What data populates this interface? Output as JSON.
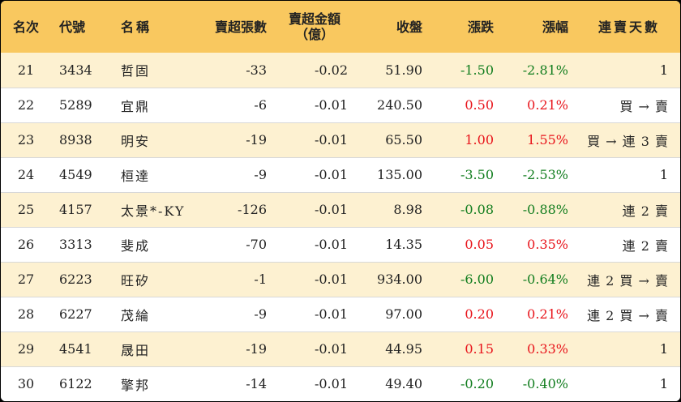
{
  "columns": {
    "rank": "名次",
    "code": "代號",
    "name": "名稱",
    "sell_lots": "賣超張數",
    "sell_amount_line1": "賣超金額",
    "sell_amount_line2": "（億）",
    "close": "收盤",
    "change": "漲跌",
    "change_pct": "漲幅",
    "consecutive": "連賣天數"
  },
  "colors": {
    "header_bg": "#f9c85f",
    "stripe_bg": "#fdf1d1",
    "up": "#e8141b",
    "down": "#117d1e"
  },
  "rows": [
    {
      "rank": "21",
      "code": "3434",
      "name": "哲固",
      "sell_lots": "-33",
      "sell_amount": "-0.02",
      "close": "51.90",
      "change": "-1.50",
      "change_pct": "-2.81%",
      "consecutive": "1",
      "dir": "down"
    },
    {
      "rank": "22",
      "code": "5289",
      "name": "宜鼎",
      "sell_lots": "-6",
      "sell_amount": "-0.01",
      "close": "240.50",
      "change": "0.50",
      "change_pct": "0.21%",
      "consecutive": "買 → 賣",
      "dir": "up"
    },
    {
      "rank": "23",
      "code": "8938",
      "name": "明安",
      "sell_lots": "-19",
      "sell_amount": "-0.01",
      "close": "65.50",
      "change": "1.00",
      "change_pct": "1.55%",
      "consecutive": "買 → 連 3 賣",
      "dir": "up"
    },
    {
      "rank": "24",
      "code": "4549",
      "name": "桓達",
      "sell_lots": "-9",
      "sell_amount": "-0.01",
      "close": "135.00",
      "change": "-3.50",
      "change_pct": "-2.53%",
      "consecutive": "1",
      "dir": "down"
    },
    {
      "rank": "25",
      "code": "4157",
      "name": "太景*-KY",
      "sell_lots": "-126",
      "sell_amount": "-0.01",
      "close": "8.98",
      "change": "-0.08",
      "change_pct": "-0.88%",
      "consecutive": "連 2 賣",
      "dir": "down"
    },
    {
      "rank": "26",
      "code": "3313",
      "name": "斐成",
      "sell_lots": "-70",
      "sell_amount": "-0.01",
      "close": "14.35",
      "change": "0.05",
      "change_pct": "0.35%",
      "consecutive": "連 2 賣",
      "dir": "up"
    },
    {
      "rank": "27",
      "code": "6223",
      "name": "旺矽",
      "sell_lots": "-1",
      "sell_amount": "-0.01",
      "close": "934.00",
      "change": "-6.00",
      "change_pct": "-0.64%",
      "consecutive": "連 2 買 → 賣",
      "dir": "down"
    },
    {
      "rank": "28",
      "code": "6227",
      "name": "茂綸",
      "sell_lots": "-9",
      "sell_amount": "-0.01",
      "close": "97.00",
      "change": "0.20",
      "change_pct": "0.21%",
      "consecutive": "連 2 買 → 賣",
      "dir": "up"
    },
    {
      "rank": "29",
      "code": "4541",
      "name": "晟田",
      "sell_lots": "-19",
      "sell_amount": "-0.01",
      "close": "44.95",
      "change": "0.15",
      "change_pct": "0.33%",
      "consecutive": "1",
      "dir": "up"
    },
    {
      "rank": "30",
      "code": "6122",
      "name": "擎邦",
      "sell_lots": "-14",
      "sell_amount": "-0.01",
      "close": "49.40",
      "change": "-0.20",
      "change_pct": "-0.40%",
      "consecutive": "1",
      "dir": "down"
    }
  ]
}
